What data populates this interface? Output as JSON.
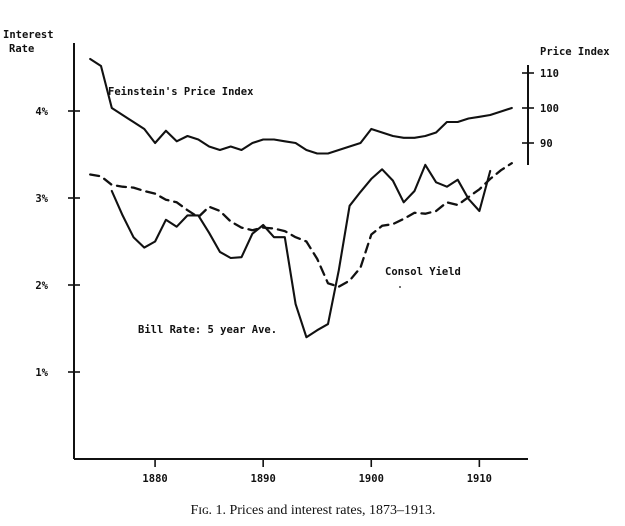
{
  "chart_data": {
    "type": "line",
    "caption": "Fɪɢ. 1. Prices and interest rates, 1873–1913.",
    "left_axis": {
      "label_line1": "Interest",
      "label_line2": "Rate",
      "ticks": [
        "1%",
        "2%",
        "3%",
        "4%"
      ],
      "tick_values": [
        1,
        2,
        3,
        4
      ],
      "ylim": [
        0,
        4.8
      ]
    },
    "right_axis": {
      "label": "Price Index",
      "ticks": [
        "90",
        "100",
        "110"
      ],
      "tick_values": [
        90,
        100,
        110
      ],
      "ylim": [
        84,
        112
      ]
    },
    "x_axis": {
      "ticks": [
        "1880",
        "1890",
        "1900",
        "1910"
      ],
      "tick_values": [
        1880,
        1890,
        1900,
        1910
      ],
      "xlim": [
        1872.5,
        1914.5
      ]
    },
    "grid": false,
    "series": [
      {
        "name": "Feinstein's Price Index",
        "axis": "right",
        "style": "solid",
        "x": [
          1874,
          1875,
          1876,
          1877,
          1878,
          1879,
          1880,
          1881,
          1882,
          1883,
          1884,
          1885,
          1886,
          1887,
          1888,
          1889,
          1890,
          1891,
          1892,
          1893,
          1894,
          1895,
          1896,
          1897,
          1898,
          1899,
          1900,
          1901,
          1902,
          1903,
          1904,
          1905,
          1906,
          1907,
          1908,
          1909,
          1910,
          1911,
          1912,
          1913
        ],
        "values": [
          114,
          112,
          100,
          98,
          96,
          94,
          90,
          93.5,
          90.5,
          92,
          91,
          89,
          88,
          89,
          88,
          90,
          91,
          91,
          90.5,
          90,
          88,
          87,
          87,
          88,
          89,
          90,
          94,
          93,
          92,
          91.5,
          91.5,
          92,
          93,
          96,
          96,
          97,
          97.5,
          98,
          99,
          100
        ]
      },
      {
        "name": "Consol Yield",
        "axis": "left",
        "style": "dashed",
        "x": [
          1874,
          1875,
          1876,
          1877,
          1878,
          1879,
          1880,
          1881,
          1882,
          1883,
          1884,
          1885,
          1886,
          1887,
          1888,
          1889,
          1890,
          1891,
          1892,
          1893,
          1894,
          1895,
          1896,
          1897,
          1898,
          1899,
          1900,
          1901,
          1902,
          1903,
          1904,
          1905,
          1906,
          1907,
          1908,
          1909,
          1910,
          1911,
          1912,
          1913
        ],
        "values": [
          3.27,
          3.25,
          3.15,
          3.13,
          3.12,
          3.08,
          3.05,
          2.98,
          2.95,
          2.86,
          2.78,
          2.9,
          2.85,
          2.73,
          2.66,
          2.63,
          2.66,
          2.65,
          2.62,
          2.55,
          2.5,
          2.3,
          2.02,
          1.98,
          2.05,
          2.2,
          2.58,
          2.68,
          2.7,
          2.76,
          2.83,
          2.82,
          2.85,
          2.95,
          2.92,
          3.01,
          3.1,
          3.22,
          3.32,
          3.4
        ]
      },
      {
        "name": "Bill Rate: 5 year Ave.",
        "axis": "left",
        "style": "solid",
        "x": [
          1876,
          1877,
          1878,
          1879,
          1880,
          1881,
          1882,
          1883,
          1884,
          1885,
          1886,
          1887,
          1888,
          1889,
          1890,
          1891,
          1892,
          1893,
          1894,
          1895,
          1896,
          1897,
          1898,
          1899,
          1900,
          1901,
          1902,
          1903,
          1904,
          1905,
          1906,
          1907,
          1908,
          1909,
          1910,
          1911
        ],
        "values": [
          3.08,
          2.8,
          2.55,
          2.43,
          2.5,
          2.75,
          2.67,
          2.8,
          2.8,
          2.6,
          2.38,
          2.31,
          2.32,
          2.59,
          2.69,
          2.55,
          2.55,
          1.78,
          1.4,
          1.48,
          1.55,
          2.17,
          2.91,
          3.07,
          3.22,
          3.33,
          3.2,
          2.95,
          3.08,
          3.38,
          3.18,
          3.13,
          3.21,
          2.99,
          2.85,
          3.31
        ]
      }
    ]
  }
}
